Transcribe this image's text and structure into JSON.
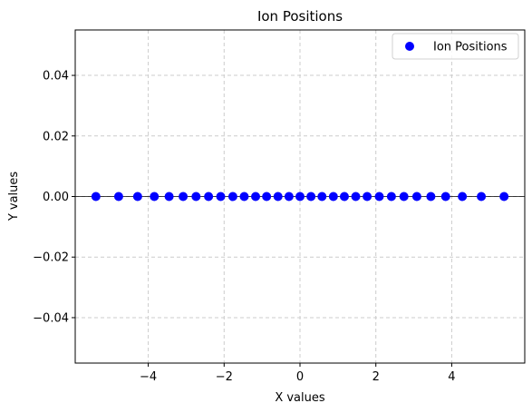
{
  "chart_data": {
    "type": "scatter",
    "title": "Ion Positions",
    "xlabel": "X values",
    "ylabel": "Y values",
    "xlim": [
      -5.925,
      5.925
    ],
    "ylim": [
      -0.055,
      0.055
    ],
    "xticks": [
      -4,
      -2,
      0,
      2,
      4
    ],
    "xtick_labels": [
      "−4",
      "−2",
      "0",
      "2",
      "4"
    ],
    "yticks": [
      -0.04,
      -0.02,
      0.0,
      0.02,
      0.04
    ],
    "ytick_labels": [
      "−0.04",
      "−0.02",
      "0.00",
      "0.02",
      "0.04"
    ],
    "grid": true,
    "legend_position": "top-right",
    "series": [
      {
        "name": "Ion Positions",
        "color": "#0000ff",
        "x": [
          -5.38,
          -4.78,
          -4.28,
          -3.84,
          -3.45,
          -3.08,
          -2.74,
          -2.41,
          -2.09,
          -1.77,
          -1.47,
          -1.17,
          -0.88,
          -0.58,
          -0.29,
          0.0,
          0.29,
          0.58,
          0.88,
          1.17,
          1.47,
          1.77,
          2.09,
          2.41,
          2.74,
          3.08,
          3.45,
          3.84,
          4.28,
          4.78,
          5.38
        ],
        "y": [
          0,
          0,
          0,
          0,
          0,
          0,
          0,
          0,
          0,
          0,
          0,
          0,
          0,
          0,
          0,
          0,
          0,
          0,
          0,
          0,
          0,
          0,
          0,
          0,
          0,
          0,
          0,
          0,
          0,
          0,
          0
        ]
      }
    ],
    "reference_line_y": 0,
    "reference_line_color": "#000000"
  }
}
